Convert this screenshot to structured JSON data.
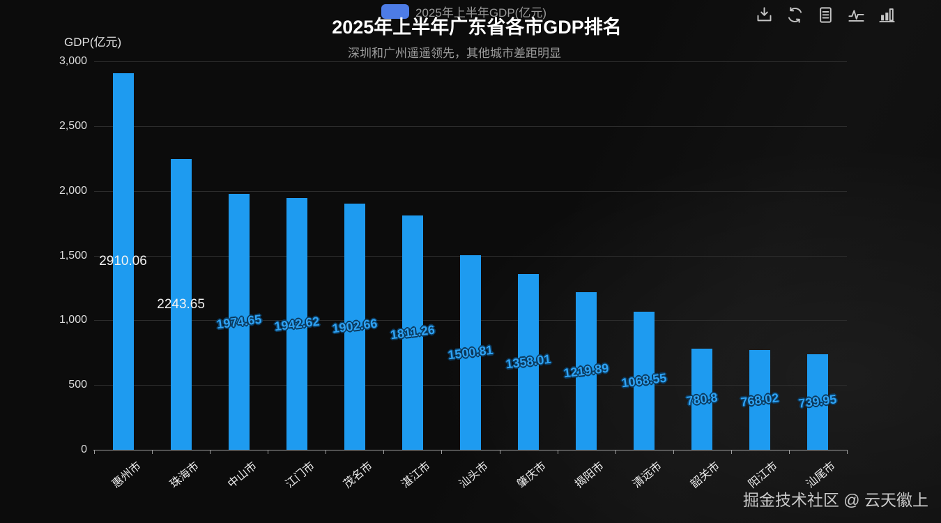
{
  "title": "2025年上半年广东省各市GDP排名",
  "subtitle": "深圳和广州遥遥领先，其他城市差距明显",
  "legend": {
    "label": "2025年上半年GDP(亿元)",
    "marker_color": "#4d7ce6"
  },
  "toolbox": {
    "icons": [
      "download-icon",
      "restore-icon",
      "data-view-icon",
      "line-chart-icon",
      "bar-chart-icon"
    ]
  },
  "y_axis": {
    "name": "GDP(亿元)",
    "ticks": [
      "0",
      "500",
      "1,000",
      "1,500",
      "2,000",
      "2,500",
      "3,000"
    ]
  },
  "watermark": "掘金技术社区 @ 云天徽上",
  "chart_data": {
    "type": "bar",
    "title": "2025年上半年广东省各市GDP排名",
    "subtitle": "深圳和广州遥遥领先，其他城市差距明显",
    "series_name": "2025年上半年GDP(亿元)",
    "categories": [
      "惠州市",
      "珠海市",
      "中山市",
      "江门市",
      "茂名市",
      "湛江市",
      "汕头市",
      "肇庆市",
      "揭阳市",
      "清远市",
      "韶关市",
      "阳江市",
      "汕尾市"
    ],
    "values": [
      2910.06,
      2243.65,
      1974.65,
      1942.62,
      1902.66,
      1811.26,
      1500.81,
      1358.01,
      1219.89,
      1068.55,
      780.8,
      768.02,
      739.95
    ],
    "label_styles": [
      "white",
      "white",
      "blue",
      "blue",
      "blue",
      "blue",
      "blue",
      "blue",
      "blue",
      "blue",
      "blue",
      "blue",
      "blue"
    ],
    "xlabel": "",
    "ylabel": "GDP(亿元)",
    "ylim": [
      0,
      3000
    ],
    "y_tick_step": 500,
    "grid": true,
    "legend_position": "top-center",
    "x_label_rotate": 45,
    "bar_color": "#1e9bf0",
    "label_color_blue": "#2fa3f5",
    "background_color": "#0d0d0d"
  }
}
